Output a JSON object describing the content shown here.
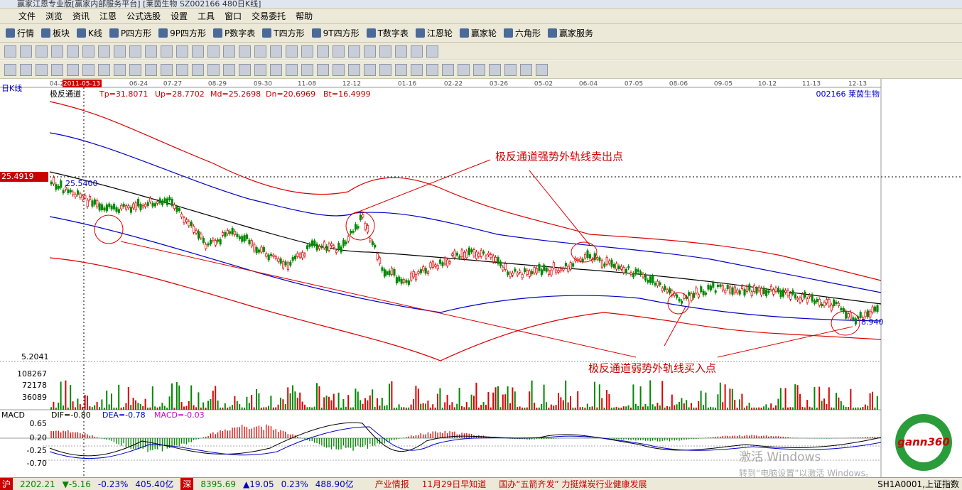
{
  "window": {
    "title": "赢家江恩专业版[赢家内部服务平台]   [莱茵生物 SZ002166 480日K线]"
  },
  "menu": [
    "文件",
    "浏览",
    "资讯",
    "江恩",
    "公式选股",
    "设置",
    "工具",
    "窗口",
    "交易委托",
    "帮助"
  ],
  "toolbar": [
    "行情",
    "板块",
    "K线",
    "P四方形",
    "9P四方形",
    "P数字表",
    "T四方形",
    "9T四方形",
    "T数字表",
    "江恩轮",
    "赢家轮",
    "六角形",
    "赢家服务"
  ],
  "chart": {
    "period": "日K线",
    "dates": [
      "04-2",
      "2011-05-13",
      "06-24",
      "07-27",
      "08-29",
      "09-30",
      "11-08",
      "12-12",
      "01-16",
      "02-22",
      "03-26",
      "05-02",
      "06-04",
      "07-05",
      "08-06",
      "09-05",
      "10-12",
      "11-13",
      "12-13"
    ],
    "indicator": {
      "name": "极反通道",
      "params": [
        "Tp=31.8071",
        "Up=28.7702",
        "Md=25.2698",
        "Dn=20.6969",
        "Bt=16.4999"
      ]
    },
    "stock": "002166  莱茵生物",
    "price_labels": {
      "cursor": "25.4919",
      "start": "25.5400",
      "end": "8.940",
      "low": "5.2041"
    },
    "annotations": [
      "极反通道强势外轨线卖出点",
      "极反通道弱势外轨线买入点"
    ]
  },
  "volume": {
    "ticks": [
      "108267",
      "72178",
      "36089"
    ]
  },
  "macd": {
    "name": "MACD",
    "params": [
      "DIF=-0.80",
      "DEA=-0.78",
      "MACD=-0.03"
    ],
    "ticks": [
      "0.65",
      "0.20",
      "-0.25",
      "-0.70"
    ]
  },
  "watermark": {
    "title": "激活 Windows",
    "text": "转到“电脑设置”以激活 Windows。",
    "logo": "gann360"
  },
  "status": {
    "sh": {
      "label": "沪",
      "price": "2202.21",
      "change": "▼-5.16",
      "pct": "-0.23%",
      "amount": "405.40亿"
    },
    "sz": {
      "label": "深",
      "price": "8395.69",
      "change": "▲19.05",
      "pct": "0.23%",
      "amount": "488.90亿"
    },
    "news": [
      "产业情报",
      "11月29日早知道",
      "国办“五箭齐发” 力挺煤炭行业健康发展"
    ],
    "index": "SH1A0001,上证指数"
  }
}
